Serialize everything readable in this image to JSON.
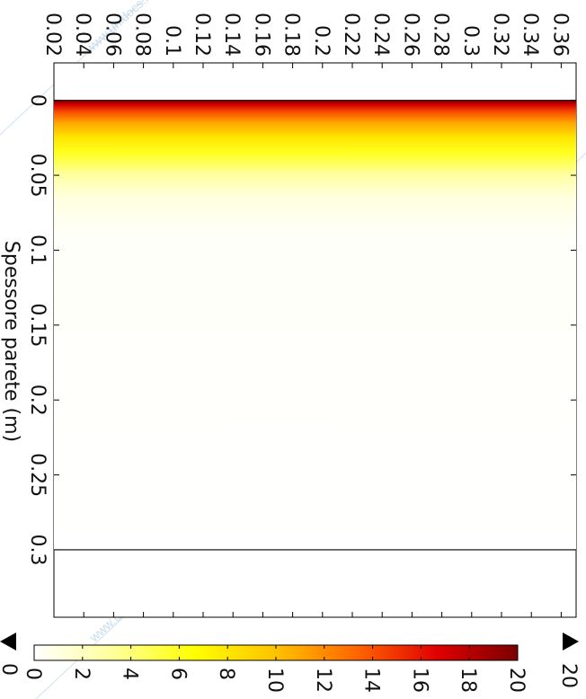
{
  "watermark": {
    "text": "www.unidocs.it"
  },
  "chart_data": {
    "type": "heatmap",
    "title": "",
    "xlabel": "Spessore parete (m)",
    "ylabel": "",
    "x_ticks": [
      "0",
      "0.05",
      "0.1",
      "0.15",
      "0.2",
      "0.25",
      "0.3"
    ],
    "y_ticks": [
      "0.02",
      "0.04",
      "0.06",
      "0.08",
      "0.1",
      "0.12",
      "0.14",
      "0.16",
      "0.18",
      "0.2",
      "0.22",
      "0.24",
      "0.26",
      "0.28",
      "0.3",
      "0.32",
      "0.34",
      "0.36"
    ],
    "xlim": [
      -0.025,
      0.345
    ],
    "ylim": [
      0.02,
      0.37
    ],
    "boundary_line_x": 0.3,
    "field": {
      "x_start": 0,
      "x_end": 0.3,
      "profile": [
        {
          "x": 0.0,
          "value": 20
        },
        {
          "x": 0.003,
          "value": 17
        },
        {
          "x": 0.008,
          "value": 14
        },
        {
          "x": 0.015,
          "value": 11
        },
        {
          "x": 0.025,
          "value": 8
        },
        {
          "x": 0.035,
          "value": 6
        },
        {
          "x": 0.05,
          "value": 3
        },
        {
          "x": 0.065,
          "value": 1
        },
        {
          "x": 0.09,
          "value": 0.2
        },
        {
          "x": 0.3,
          "value": 0
        }
      ]
    },
    "colorbar": {
      "min": 0,
      "max": 20,
      "ticks": [
        "0",
        "2",
        "4",
        "6",
        "8",
        "10",
        "12",
        "14",
        "16",
        "18",
        "20"
      ],
      "min_label": "0",
      "max_label": "20",
      "colors": [
        "#ffffff",
        "#ffff99",
        "#ffff00",
        "#ffc200",
        "#ff6600",
        "#e00000",
        "#7a0000"
      ]
    }
  }
}
